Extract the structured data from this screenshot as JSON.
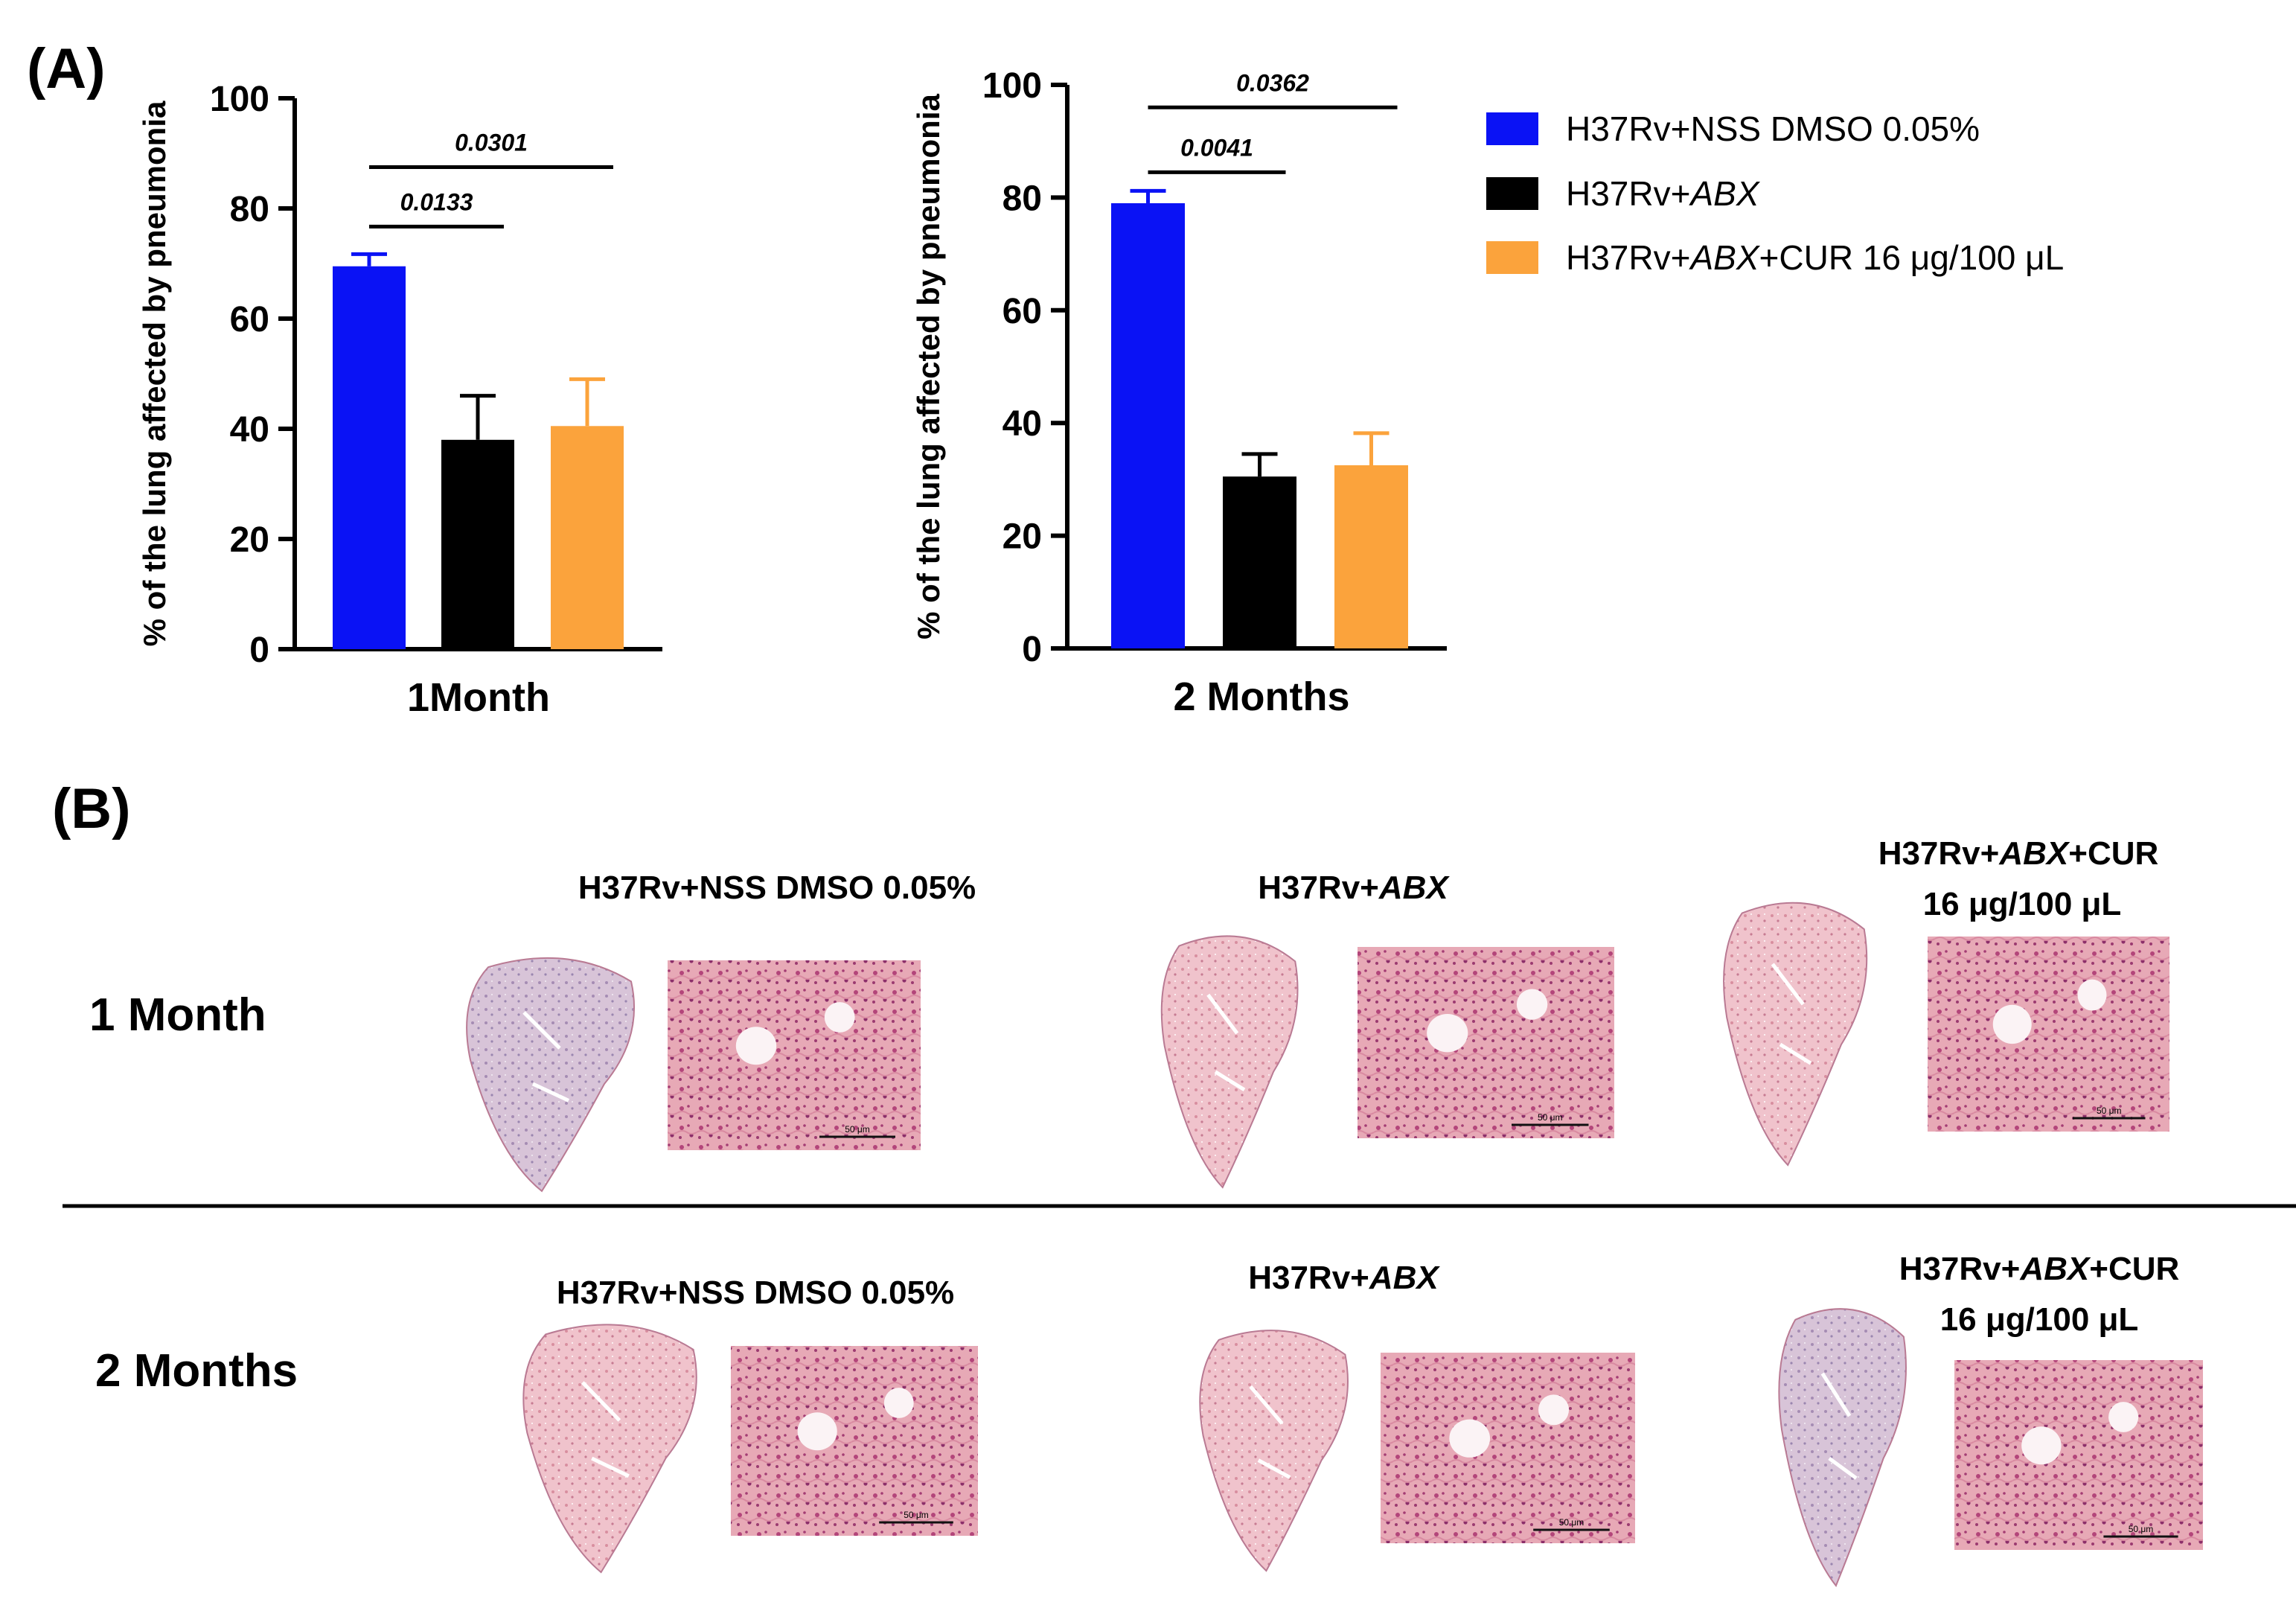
{
  "panel_labels": {
    "a": "(A)",
    "b": "(B)"
  },
  "colors": {
    "blue": "#0a12f5",
    "black": "#000000",
    "orange": "#fba33c"
  },
  "legend": [
    {
      "prefix": "H37Rv+NSS DMSO 0.05%",
      "italic": "",
      "suffix": "",
      "color": "#0a12f5"
    },
    {
      "prefix": "H37Rv+",
      "italic": "ABX",
      "suffix": "",
      "color": "#000000"
    },
    {
      "prefix": "H37Rv+",
      "italic": "ABX",
      "suffix": "+CUR 16 μg/100 μL",
      "color": "#fba33c"
    }
  ],
  "chart_data": [
    {
      "type": "bar",
      "title": "",
      "xlabel": "1Month",
      "ylabel": "% of the lung affected by pneumonia",
      "ylim": [
        0,
        100
      ],
      "yticks": [
        0,
        20,
        40,
        60,
        80,
        100
      ],
      "series": [
        {
          "values": [
            69.5
          ],
          "error": [
            2.2
          ]
        },
        {
          "values": [
            38
          ],
          "error": [
            8
          ]
        },
        {
          "values": [
            40.5
          ],
          "error": [
            8.5
          ]
        }
      ],
      "comparisons": [
        {
          "label": "0.0133",
          "from": 0,
          "to": 1,
          "y": 76.7
        },
        {
          "label": "0.0301",
          "from": 0,
          "to": 2,
          "y": 87.5
        }
      ]
    },
    {
      "type": "bar",
      "title": "",
      "xlabel": "2 Months",
      "ylabel": "% of the lung affected by pneumonia",
      "ylim": [
        0,
        100
      ],
      "yticks": [
        0,
        20,
        40,
        60,
        80,
        100
      ],
      "series": [
        {
          "values": [
            79
          ],
          "error": [
            2.2
          ]
        },
        {
          "values": [
            30.5
          ],
          "error": [
            4
          ]
        },
        {
          "values": [
            32.5
          ],
          "error": [
            5.7
          ]
        }
      ],
      "comparisons": [
        {
          "label": "0.0041",
          "from": 0,
          "to": 1,
          "y": 84.5
        },
        {
          "label": "0.0362",
          "from": 0,
          "to": 2,
          "y": 96
        }
      ]
    }
  ],
  "histology": {
    "rows": [
      {
        "label": "1 Month"
      },
      {
        "label": "2 Months"
      }
    ],
    "columns": [
      {
        "title_lines": [
          {
            "prefix": "H37Rv+NSS DMSO 0.05%",
            "italic": "",
            "suffix": ""
          }
        ],
        "lung_icon": "lung-tissue-section-icon",
        "micrograph_icon": "histology-micrograph-icon"
      },
      {
        "title_lines": [
          {
            "prefix": "H37Rv+",
            "italic": "ABX",
            "suffix": ""
          }
        ],
        "lung_icon": "lung-tissue-section-icon",
        "micrograph_icon": "histology-micrograph-icon"
      },
      {
        "title_lines": [
          {
            "prefix": "H37Rv+",
            "italic": "ABX",
            "suffix": "+CUR"
          },
          {
            "prefix": "16 μg/100 μL",
            "italic": "",
            "suffix": ""
          }
        ],
        "lung_icon": "lung-tissue-section-icon",
        "micrograph_icon": "histology-micrograph-icon"
      }
    ],
    "scale_bar_label": "50 μm"
  }
}
